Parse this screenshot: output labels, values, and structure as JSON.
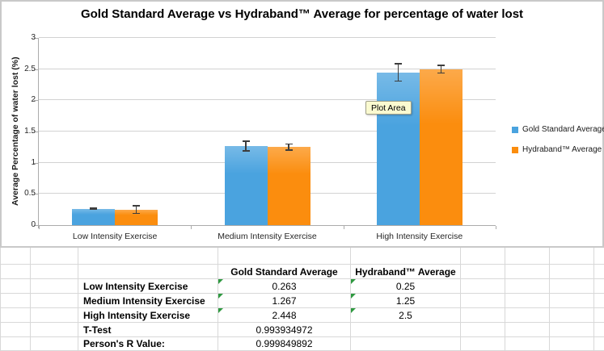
{
  "chart_data": {
    "type": "bar",
    "title": "Gold Standard Average vs Hydraband™ Average for percentage of water lost",
    "ylabel": "Average Percentage of water lost (%)",
    "xlabel": "",
    "categories": [
      "Low Intensity Exercise",
      "Medium Intensity Exercise",
      "High Intensity Exercise"
    ],
    "series": [
      {
        "name": "Gold Standard Average",
        "color": "#4AA3DF",
        "values": [
          0.263,
          1.267,
          2.448
        ],
        "errors": [
          0.02,
          0.09,
          0.15
        ]
      },
      {
        "name": "Hydraband™ Average",
        "color": "#FB8D0E",
        "values": [
          0.25,
          1.25,
          2.5
        ],
        "errors": [
          0.07,
          0.06,
          0.07
        ]
      }
    ],
    "ylim": [
      0,
      3
    ],
    "ytick_step": 0.5,
    "grid": true,
    "legend_position": "right",
    "annotations": [
      "Plot Area"
    ]
  },
  "spreadsheet": {
    "column_headers": [
      "Gold Standard Average",
      "Hydraband™ Average"
    ],
    "rows": [
      {
        "label": "Low Intensity Exercise",
        "values": [
          "0.263",
          "0.25"
        ],
        "error_flags": [
          true,
          true
        ]
      },
      {
        "label": "Medium Intensity Exercise",
        "values": [
          "1.267",
          "1.25"
        ],
        "error_flags": [
          true,
          true
        ]
      },
      {
        "label": "High Intensity Exercise",
        "values": [
          "2.448",
          "2.5"
        ],
        "error_flags": [
          true,
          true
        ]
      },
      {
        "label": "T-Test",
        "values": [
          "0.993934972",
          ""
        ],
        "error_flags": [
          false,
          false
        ]
      },
      {
        "label": "Person's R Value:",
        "values": [
          "0.999849892",
          ""
        ],
        "error_flags": [
          false,
          false
        ]
      }
    ]
  }
}
